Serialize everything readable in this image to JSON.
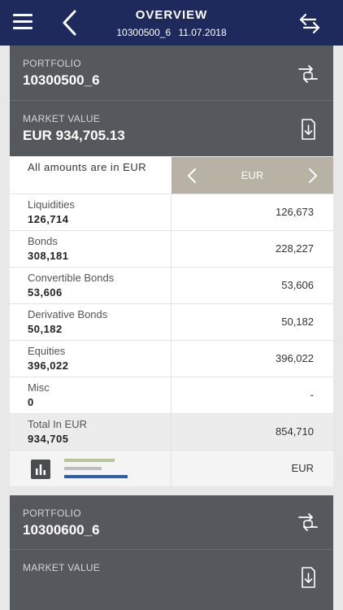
{
  "header": {
    "title": "OVERVIEW",
    "subtitle": "10300500_6   11.07.2018",
    "menu_icon": "hamburger-menu-icon",
    "back_icon": "chevron-left-icon",
    "swap_icon": "swap-arrows-icon",
    "bg_color": "#1f2a5c"
  },
  "portfolio1": {
    "portfolio_label": "PORTFOLIO",
    "portfolio_value": "10300500_6",
    "market_label": "MARKET VALUE",
    "market_value": "EUR 934,705.13"
  },
  "table": {
    "note": "All amounts are in EUR",
    "currency": "EUR",
    "rows": [
      {
        "name": "Liquidities",
        "amount": "126,714",
        "value": "126,673"
      },
      {
        "name": "Bonds",
        "amount": "308,181",
        "value": "228,227"
      },
      {
        "name": "Convertible Bonds",
        "amount": "53,606",
        "value": "53,606"
      },
      {
        "name": "Derivative Bonds",
        "amount": "50,182",
        "value": "50,182"
      },
      {
        "name": "Equities",
        "amount": "396,022",
        "value": "396,022"
      },
      {
        "name": "Misc",
        "amount": "0",
        "value": "-"
      }
    ],
    "total": {
      "name": "Total In EUR",
      "amount": "934,705",
      "value": "854,710"
    },
    "footer_currency": "EUR",
    "legend_colors": [
      "#b9c796",
      "#bdbdbd",
      "#2d5fa8"
    ]
  },
  "portfolio2": {
    "portfolio_label": "PORTFOLIO",
    "portfolio_value": "10300600_6",
    "market_label": "MARKET VALUE"
  }
}
